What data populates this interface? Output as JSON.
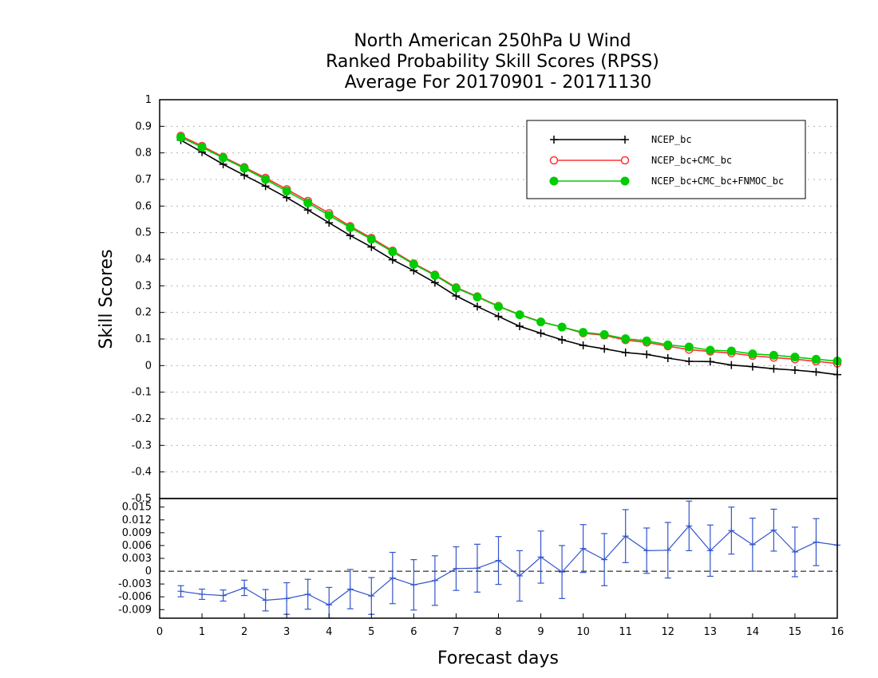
{
  "chart_data": [
    {
      "type": "line",
      "title": [
        "North American 250hPa U Wind",
        "Ranked Probability Skill Scores (RPSS)",
        "Average For 20170901 - 20171130"
      ],
      "xlabel": "Forecast days",
      "ylabel": "Skill Scores",
      "xlim": [
        0,
        16
      ],
      "ylim": [
        -0.5,
        1
      ],
      "x_ticks": [
        "0",
        "1",
        "2",
        "3",
        "4",
        "5",
        "6",
        "7",
        "8",
        "9",
        "10",
        "11",
        "12",
        "13",
        "14",
        "15",
        "16"
      ],
      "y_ticks": [
        "1",
        "0.9",
        "0.8",
        "0.7",
        "0.6",
        "0.5",
        "0.4",
        "0.3",
        "0.2",
        "0.1",
        "0",
        "-0.1",
        "-0.2",
        "-0.3",
        "-0.4",
        "-0.5"
      ],
      "grid": "dotted horizontal",
      "legend_position": "top-right",
      "x": [
        0.5,
        1,
        1.5,
        2,
        2.5,
        3,
        3.5,
        4,
        4.5,
        5,
        5.5,
        6,
        6.5,
        7,
        7.5,
        8,
        8.5,
        9,
        9.5,
        10,
        10.5,
        11,
        11.5,
        12,
        12.5,
        13,
        13.5,
        14,
        14.5,
        15,
        15.5,
        16
      ],
      "series": [
        {
          "name": "NCEP_bc",
          "color": "#000000",
          "marker": "plus",
          "values": [
            0.848,
            0.803,
            0.757,
            0.716,
            0.675,
            0.632,
            0.585,
            0.537,
            0.489,
            0.446,
            0.398,
            0.357,
            0.312,
            0.262,
            0.222,
            0.185,
            0.148,
            0.122,
            0.097,
            0.076,
            0.063,
            0.049,
            0.042,
            0.028,
            0.016,
            0.015,
            0.002,
            -0.004,
            -0.012,
            -0.017,
            -0.024,
            -0.034
          ]
        },
        {
          "name": "NCEP_bc+CMC_bc",
          "color": "#ff3333",
          "marker": "open-circle",
          "values": [
            0.864,
            0.826,
            0.785,
            0.746,
            0.706,
            0.663,
            0.619,
            0.573,
            0.524,
            0.48,
            0.432,
            0.384,
            0.342,
            0.294,
            0.26,
            0.224,
            0.192,
            0.165,
            0.145,
            0.122,
            0.114,
            0.096,
            0.087,
            0.073,
            0.06,
            0.053,
            0.047,
            0.037,
            0.03,
            0.024,
            0.016,
            0.008
          ]
        },
        {
          "name": "NCEP_bc+CMC_bc+FNMOC_bc",
          "color": "#00cc00",
          "marker": "filled-circle",
          "values": [
            0.859,
            0.821,
            0.781,
            0.742,
            0.7,
            0.656,
            0.612,
            0.565,
            0.519,
            0.475,
            0.428,
            0.381,
            0.339,
            0.291,
            0.258,
            0.222,
            0.191,
            0.164,
            0.145,
            0.125,
            0.117,
            0.101,
            0.093,
            0.078,
            0.07,
            0.058,
            0.055,
            0.044,
            0.039,
            0.032,
            0.024,
            0.017
          ]
        }
      ]
    },
    {
      "type": "line",
      "xlim": [
        0,
        16
      ],
      "ylim": [
        -0.011,
        0.017
      ],
      "y_ticks": [
        "0.015",
        "0.012",
        "0.009",
        "0.006",
        "0.003",
        "0",
        "-0.003",
        "-0.006",
        "-0.009"
      ],
      "zero_line": "dashed",
      "series": [
        {
          "name": "",
          "color": "#3355cc",
          "marker": "plus",
          "error_bars": true,
          "values": [
            -0.0047,
            -0.0054,
            -0.0057,
            -0.0039,
            -0.0068,
            -0.0064,
            -0.0054,
            -0.0079,
            -0.0042,
            -0.0058,
            -0.0016,
            -0.0032,
            -0.0022,
            0.0006,
            0.0007,
            0.0025,
            -0.0011,
            0.0033,
            -0.0002,
            0.0053,
            0.0027,
            0.0082,
            0.0048,
            0.0049,
            0.0106,
            0.0048,
            0.0095,
            0.0062,
            0.0096,
            0.0045,
            0.0068,
            0.0061
          ],
          "errors": [
            0.0013,
            0.0012,
            0.0013,
            0.0018,
            0.0025,
            0.0037,
            0.0035,
            0.0041,
            0.0046,
            0.0043,
            0.006,
            0.0059,
            0.0058,
            0.0051,
            0.0056,
            0.0056,
            0.0059,
            0.0061,
            0.0062,
            0.0056,
            0.0061,
            0.0062,
            0.0053,
            0.0065,
            0.0058,
            0.006,
            0.0055,
            0.0062,
            0.0049,
            0.0058,
            0.0055,
            0.0058
          ]
        }
      ]
    }
  ]
}
